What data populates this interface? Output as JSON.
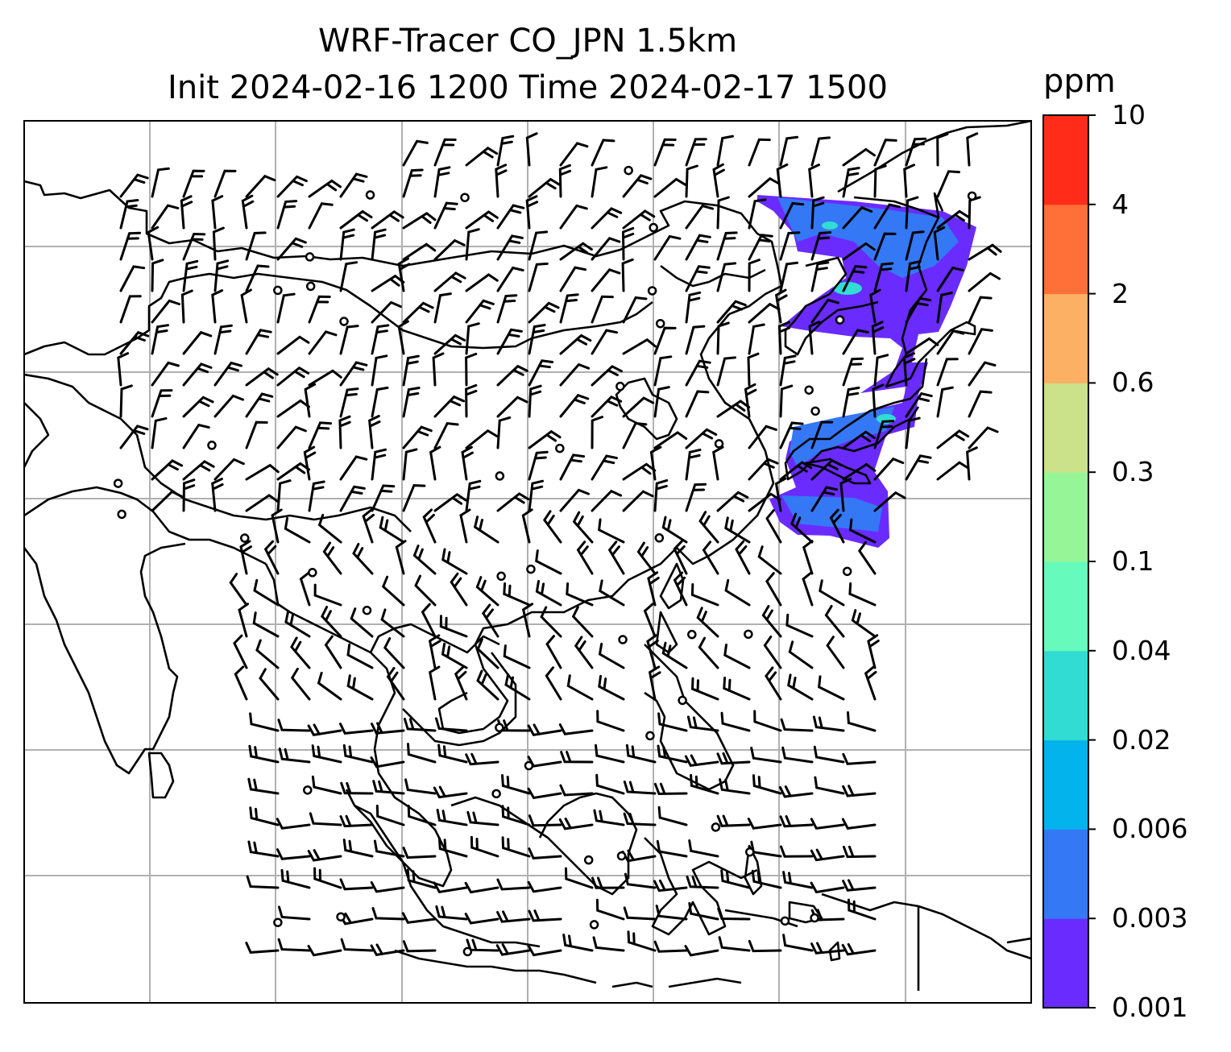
{
  "title": {
    "line1": "WRF-Tracer CO_JPN 1.5km",
    "line2": "Init 2024-02-16 1200 Time 2024-02-17 1500"
  },
  "colorbar": {
    "unit": "ppm",
    "levels": [
      "0.001",
      "0.003",
      "0.006",
      "0.02",
      "0.04",
      "0.1",
      "0.3",
      "0.6",
      "2",
      "4",
      "10"
    ],
    "colors": [
      "#6a2bff",
      "#3578f5",
      "#03b3ec",
      "#31dcd2",
      "#66fabd",
      "#96f697",
      "#cbe28a",
      "#fcb064",
      "#ff7038",
      "#ff2c1a"
    ]
  },
  "map": {
    "gridlines": true,
    "coastline_color": "#000000",
    "grid_color": "#b0b0b0",
    "plume_colors": [
      "#6a2bff",
      "#3578f5",
      "#31dcd2"
    ],
    "overlay": "wind barbs (black)"
  }
}
